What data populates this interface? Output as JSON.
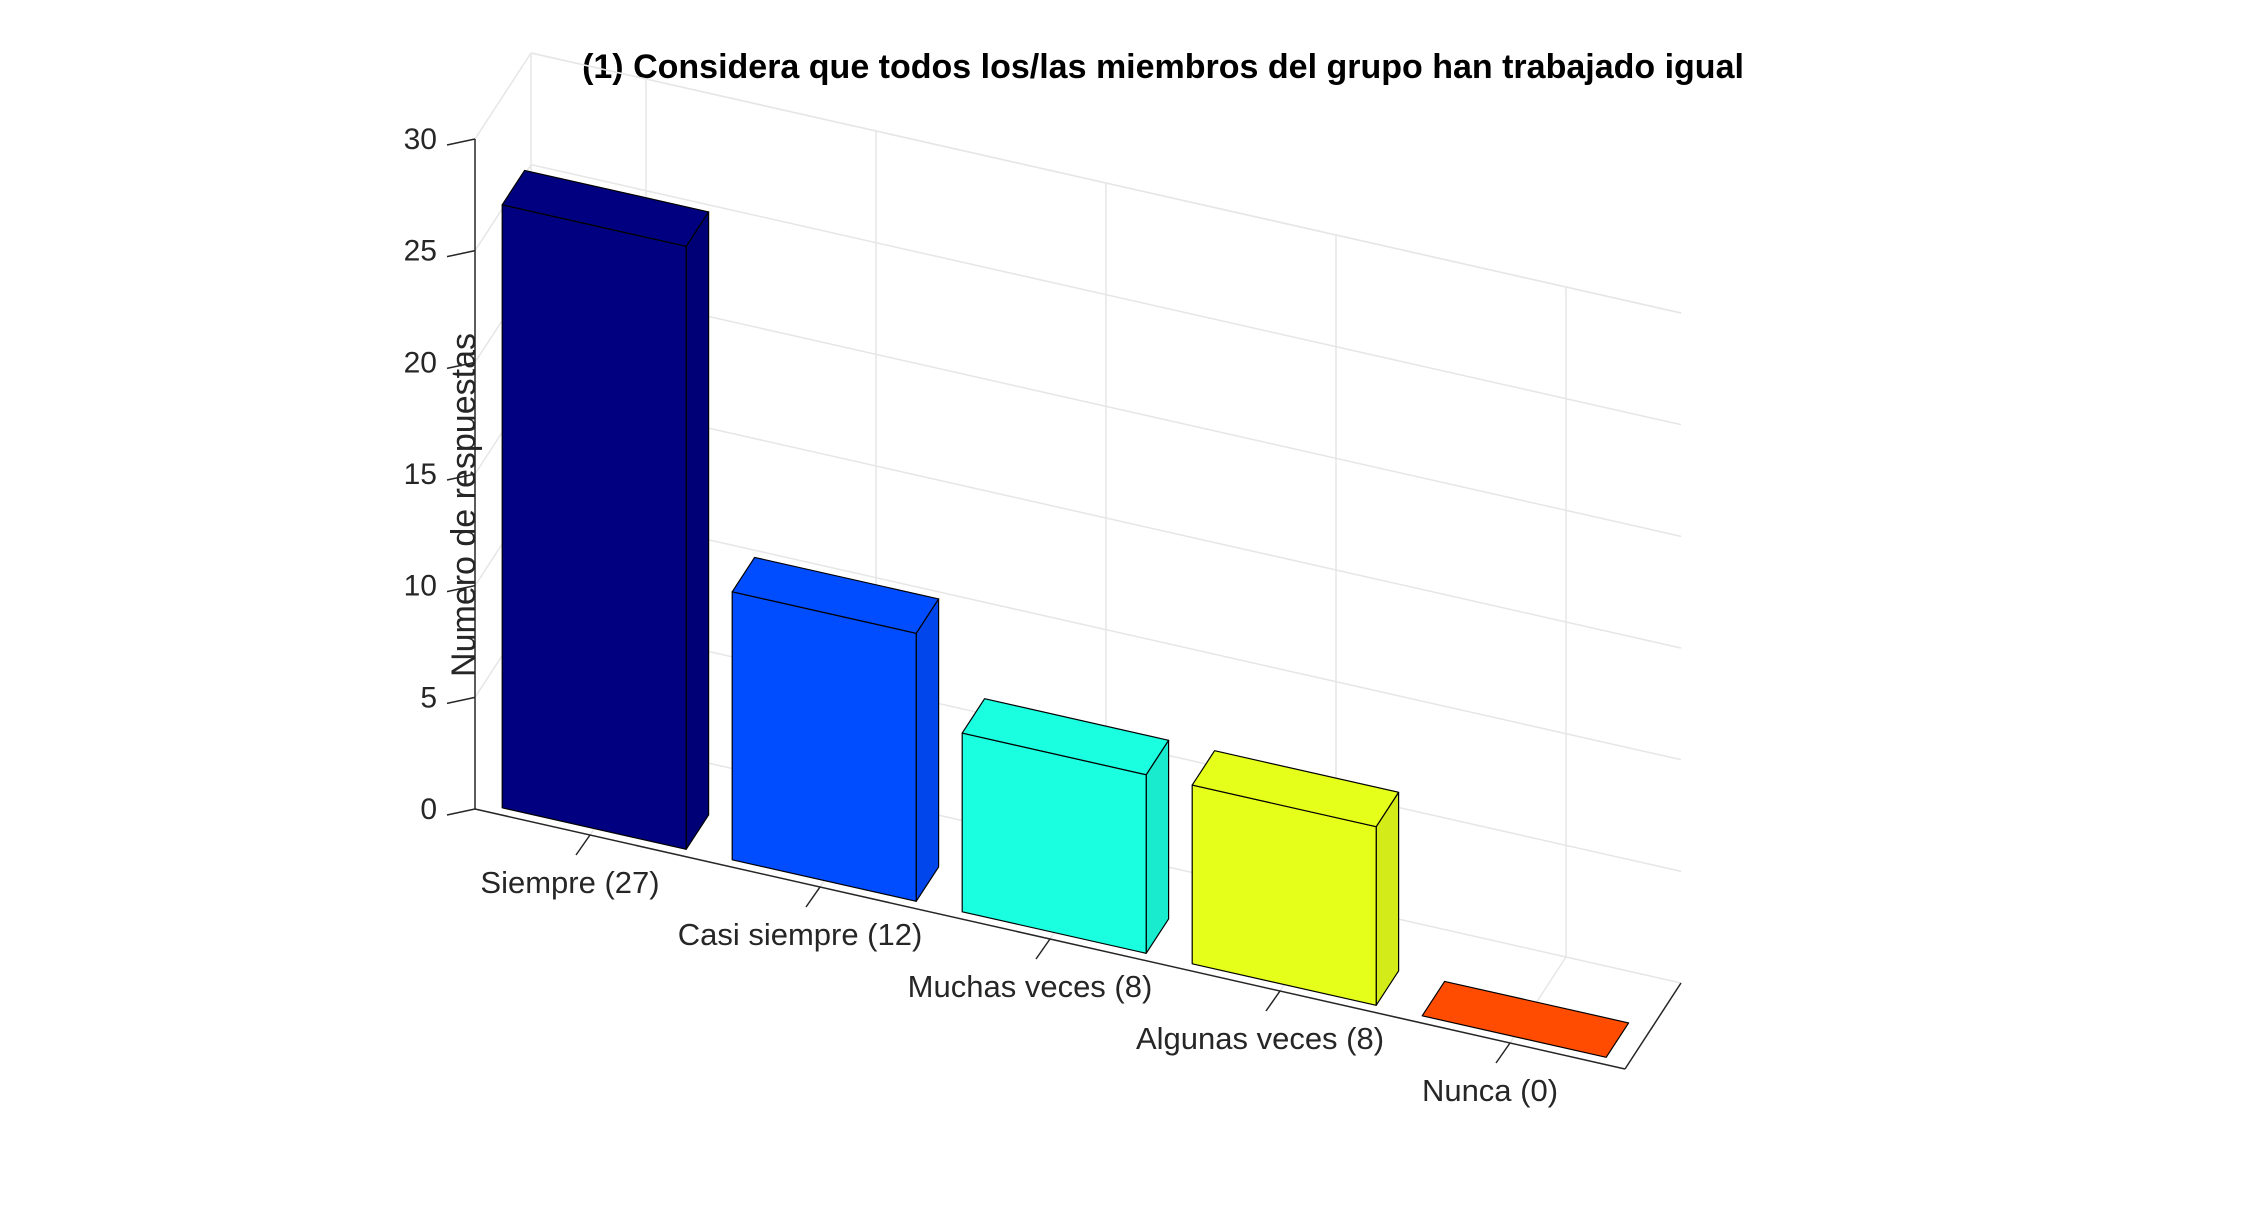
{
  "chart_data": {
    "type": "bar",
    "title": "(1) Considera que todos los/las miembros del grupo han trabajado igual",
    "ylabel": "Numero de respuestas",
    "xlabel": "",
    "categories": [
      "Siempre (27)",
      "Casi siempre (12)",
      "Muchas veces (8)",
      "Algunas veces (8)",
      "Nunca (0)"
    ],
    "values": [
      27,
      12,
      8,
      8,
      0
    ],
    "ylim": [
      0,
      30
    ],
    "yticks": [
      "0",
      "5",
      "10",
      "15",
      "20",
      "25",
      "30"
    ],
    "grid": true,
    "view": "3d",
    "colors": [
      "#000080",
      "#004cff",
      "#1affe0",
      "#e5ff1a",
      "#ff4c00"
    ]
  }
}
